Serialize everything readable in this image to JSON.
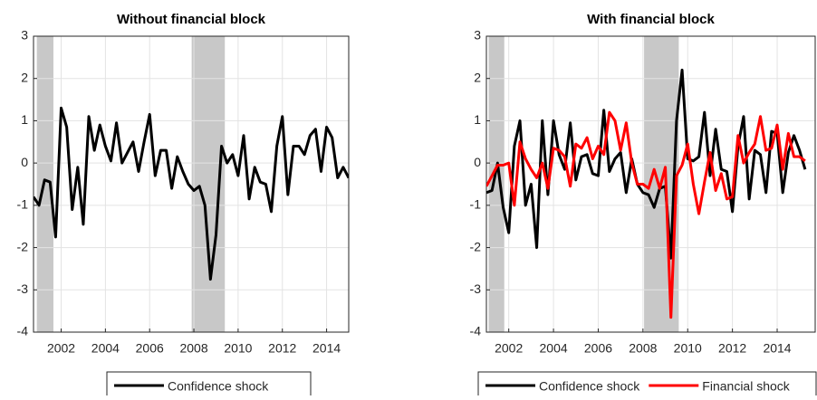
{
  "chart_data": [
    {
      "type": "line",
      "title": "Without financial block",
      "x": [
        2000.75,
        2001,
        2001.25,
        2001.5,
        2001.75,
        2002,
        2002.25,
        2002.5,
        2002.75,
        2003,
        2003.25,
        2003.5,
        2003.75,
        2004,
        2004.25,
        2004.5,
        2004.75,
        2005,
        2005.25,
        2005.5,
        2005.75,
        2006,
        2006.25,
        2006.5,
        2006.75,
        2007,
        2007.25,
        2007.5,
        2007.75,
        2008,
        2008.25,
        2008.5,
        2008.75,
        2009,
        2009.25,
        2009.5,
        2009.75,
        2010,
        2010.25,
        2010.5,
        2010.75,
        2011,
        2011.25,
        2011.5,
        2011.75,
        2012,
        2012.25,
        2012.5,
        2012.75,
        2013,
        2013.25,
        2013.5,
        2013.75,
        2014,
        2014.25,
        2014.5,
        2014.75,
        2015
      ],
      "series": [
        {
          "name": "Confidence shock",
          "color": "#000000",
          "values": [
            -0.8,
            -1.0,
            -0.4,
            -0.45,
            -1.75,
            1.3,
            0.85,
            -1.1,
            -0.1,
            -1.45,
            1.1,
            0.3,
            0.9,
            0.4,
            0.05,
            0.95,
            0.0,
            0.25,
            0.5,
            -0.2,
            0.5,
            1.15,
            -0.3,
            0.3,
            0.3,
            -0.6,
            0.15,
            -0.2,
            -0.5,
            -0.65,
            -0.55,
            -1.0,
            -2.75,
            -1.7,
            0.4,
            0.0,
            0.2,
            -0.3,
            0.65,
            -0.85,
            -0.1,
            -0.45,
            -0.5,
            -1.15,
            0.4,
            1.1,
            -0.75,
            0.4,
            0.4,
            0.2,
            0.65,
            0.8,
            -0.2,
            0.85,
            0.6,
            -0.35,
            -0.1,
            -0.35
          ]
        }
      ],
      "shaded": [
        [
          2000.9,
          2001.65
        ],
        [
          2007.9,
          2009.4
        ]
      ],
      "xlim": [
        2000.75,
        2015.0
      ],
      "ylim": [
        -4,
        3
      ],
      "xticks": [
        2002,
        2004,
        2006,
        2008,
        2010,
        2012,
        2014
      ],
      "yticks": [
        -4,
        -3,
        -2,
        -1,
        0,
        1,
        2,
        3
      ],
      "grid": true
    },
    {
      "type": "line",
      "title": "With financial block",
      "x": [
        2001,
        2001.25,
        2001.5,
        2001.75,
        2002,
        2002.25,
        2002.5,
        2002.75,
        2003,
        2003.25,
        2003.5,
        2003.75,
        2004,
        2004.25,
        2004.5,
        2004.75,
        2005,
        2005.25,
        2005.5,
        2005.75,
        2006,
        2006.25,
        2006.5,
        2006.75,
        2007,
        2007.25,
        2007.5,
        2007.75,
        2008,
        2008.25,
        2008.5,
        2008.75,
        2009,
        2009.25,
        2009.5,
        2009.75,
        2010,
        2010.25,
        2010.5,
        2010.75,
        2011,
        2011.25,
        2011.5,
        2011.75,
        2012,
        2012.25,
        2012.5,
        2012.75,
        2013,
        2013.25,
        2013.5,
        2013.75,
        2014,
        2014.25,
        2014.5,
        2014.75,
        2015,
        2015.25
      ],
      "series": [
        {
          "name": "Confidence shock",
          "color": "#000000",
          "values": [
            -0.7,
            -0.65,
            0.0,
            -1.05,
            -1.65,
            0.4,
            1.0,
            -1.0,
            -0.5,
            -2.0,
            1.0,
            -0.75,
            1.0,
            0.2,
            -0.15,
            0.95,
            -0.4,
            0.15,
            0.2,
            -0.25,
            -0.3,
            1.25,
            -0.2,
            0.1,
            0.25,
            -0.7,
            0.1,
            -0.5,
            -0.7,
            -0.75,
            -1.05,
            -0.6,
            -0.55,
            -2.25,
            1.0,
            2.2,
            0.1,
            0.05,
            0.15,
            1.2,
            -0.3,
            0.8,
            -0.15,
            -0.2,
            -1.15,
            0.4,
            1.1,
            -0.85,
            0.3,
            0.2,
            -0.7,
            0.75,
            0.7,
            -0.7,
            0.25,
            0.65,
            0.3,
            -0.15
          ]
        },
        {
          "name": "Financial shock",
          "color": "#ff0000",
          "values": [
            -0.55,
            -0.3,
            -0.05,
            -0.05,
            0.0,
            -1.0,
            0.5,
            0.1,
            -0.15,
            -0.35,
            0.0,
            -0.6,
            0.35,
            0.3,
            0.15,
            -0.55,
            0.45,
            0.35,
            0.6,
            0.1,
            0.4,
            0.2,
            1.2,
            1.0,
            0.3,
            0.95,
            0.0,
            -0.5,
            -0.5,
            -0.6,
            -0.15,
            -0.6,
            -0.1,
            -3.65,
            -0.3,
            -0.05,
            0.45,
            -0.5,
            -1.2,
            -0.45,
            0.25,
            -0.65,
            -0.25,
            -0.85,
            -0.8,
            0.65,
            0.0,
            0.25,
            0.45,
            1.1,
            0.3,
            0.35,
            0.9,
            -0.15,
            0.7,
            0.15,
            0.15,
            0.05
          ]
        }
      ],
      "shaded": [
        [
          2001.1,
          2001.8
        ],
        [
          2008.05,
          2009.6
        ]
      ],
      "xlim": [
        2001.0,
        2015.7
      ],
      "ylim": [
        -4,
        3
      ],
      "xticks": [
        2002,
        2004,
        2006,
        2008,
        2010,
        2012,
        2014
      ],
      "yticks": [
        -4,
        -3,
        -2,
        -1,
        0,
        1,
        2,
        3
      ],
      "grid": true
    }
  ]
}
